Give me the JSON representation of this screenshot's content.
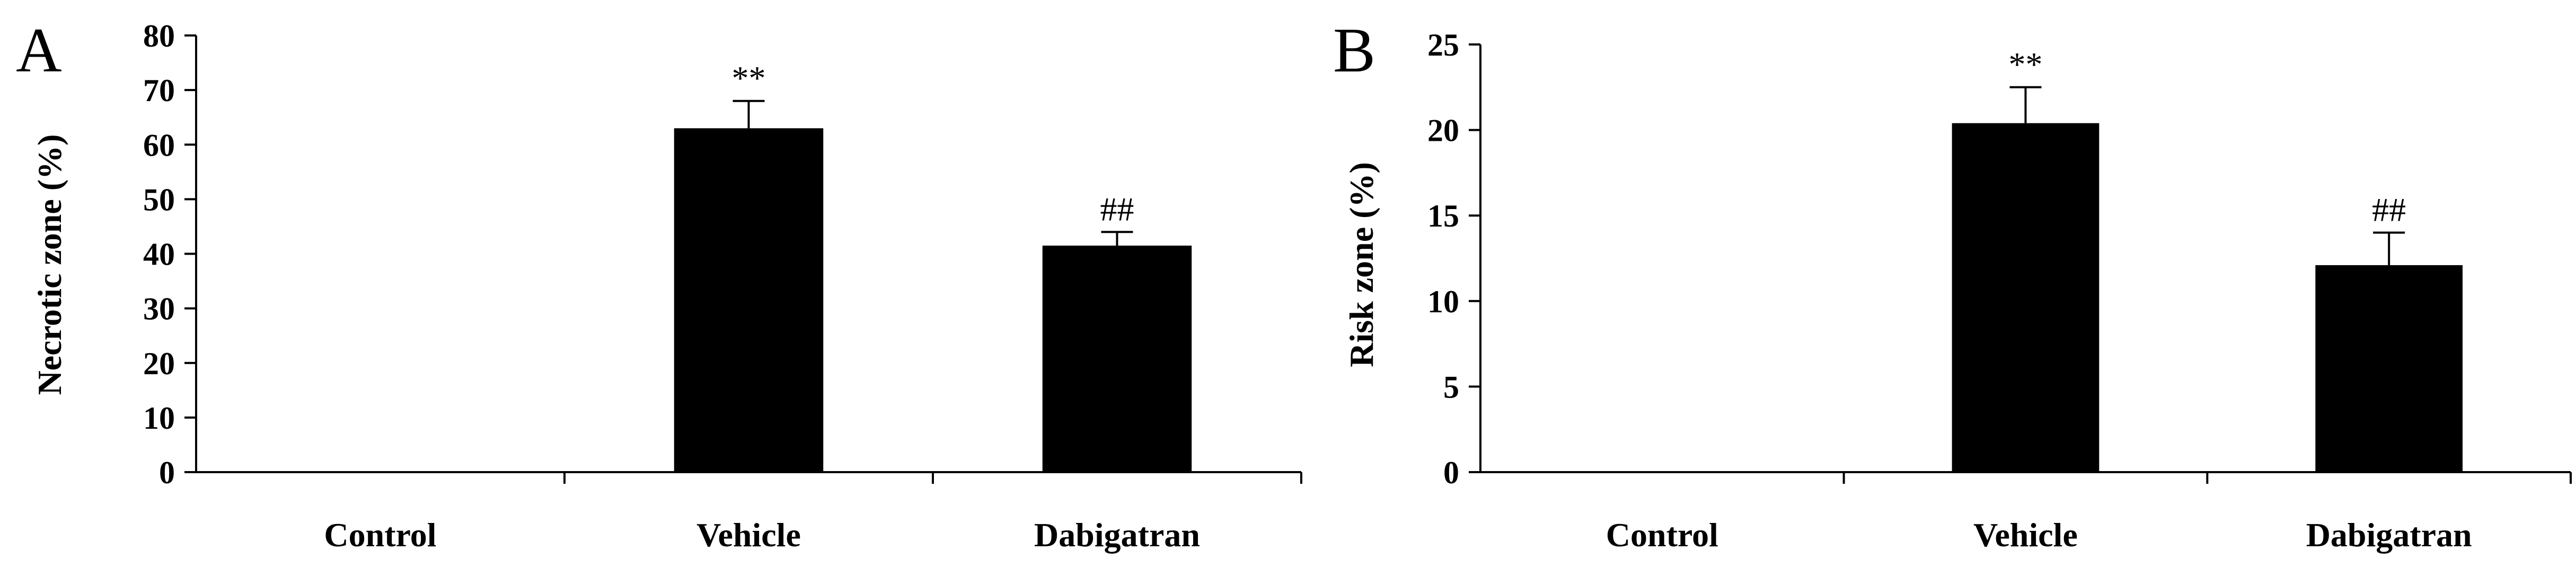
{
  "chart_data": [
    {
      "type": "bar",
      "panel": "A",
      "categories": [
        "Control",
        "Vehicle",
        "Dabigatran"
      ],
      "values": [
        0,
        63,
        41.5
      ],
      "errors": [
        0,
        5,
        2.5
      ],
      "annotations": [
        "",
        "**",
        "##"
      ],
      "xlabel": "",
      "ylabel": "Necrotic zone (%)",
      "ylim": [
        0,
        80
      ],
      "yticks": [
        0,
        10,
        20,
        30,
        40,
        50,
        60,
        70,
        80
      ],
      "bar_color": "#000000",
      "grid": false
    },
    {
      "type": "bar",
      "panel": "B",
      "categories": [
        "Control",
        "Vehicle",
        "Dabigatran"
      ],
      "values": [
        0,
        20.4,
        12.1
      ],
      "errors": [
        0,
        2.1,
        1.9
      ],
      "annotations": [
        "",
        "**",
        "##"
      ],
      "xlabel": "",
      "ylabel": "Risk zone (%)",
      "ylim": [
        0,
        25
      ],
      "yticks": [
        0,
        5,
        10,
        15,
        20,
        25
      ],
      "bar_color": "#000000",
      "grid": false
    }
  ]
}
